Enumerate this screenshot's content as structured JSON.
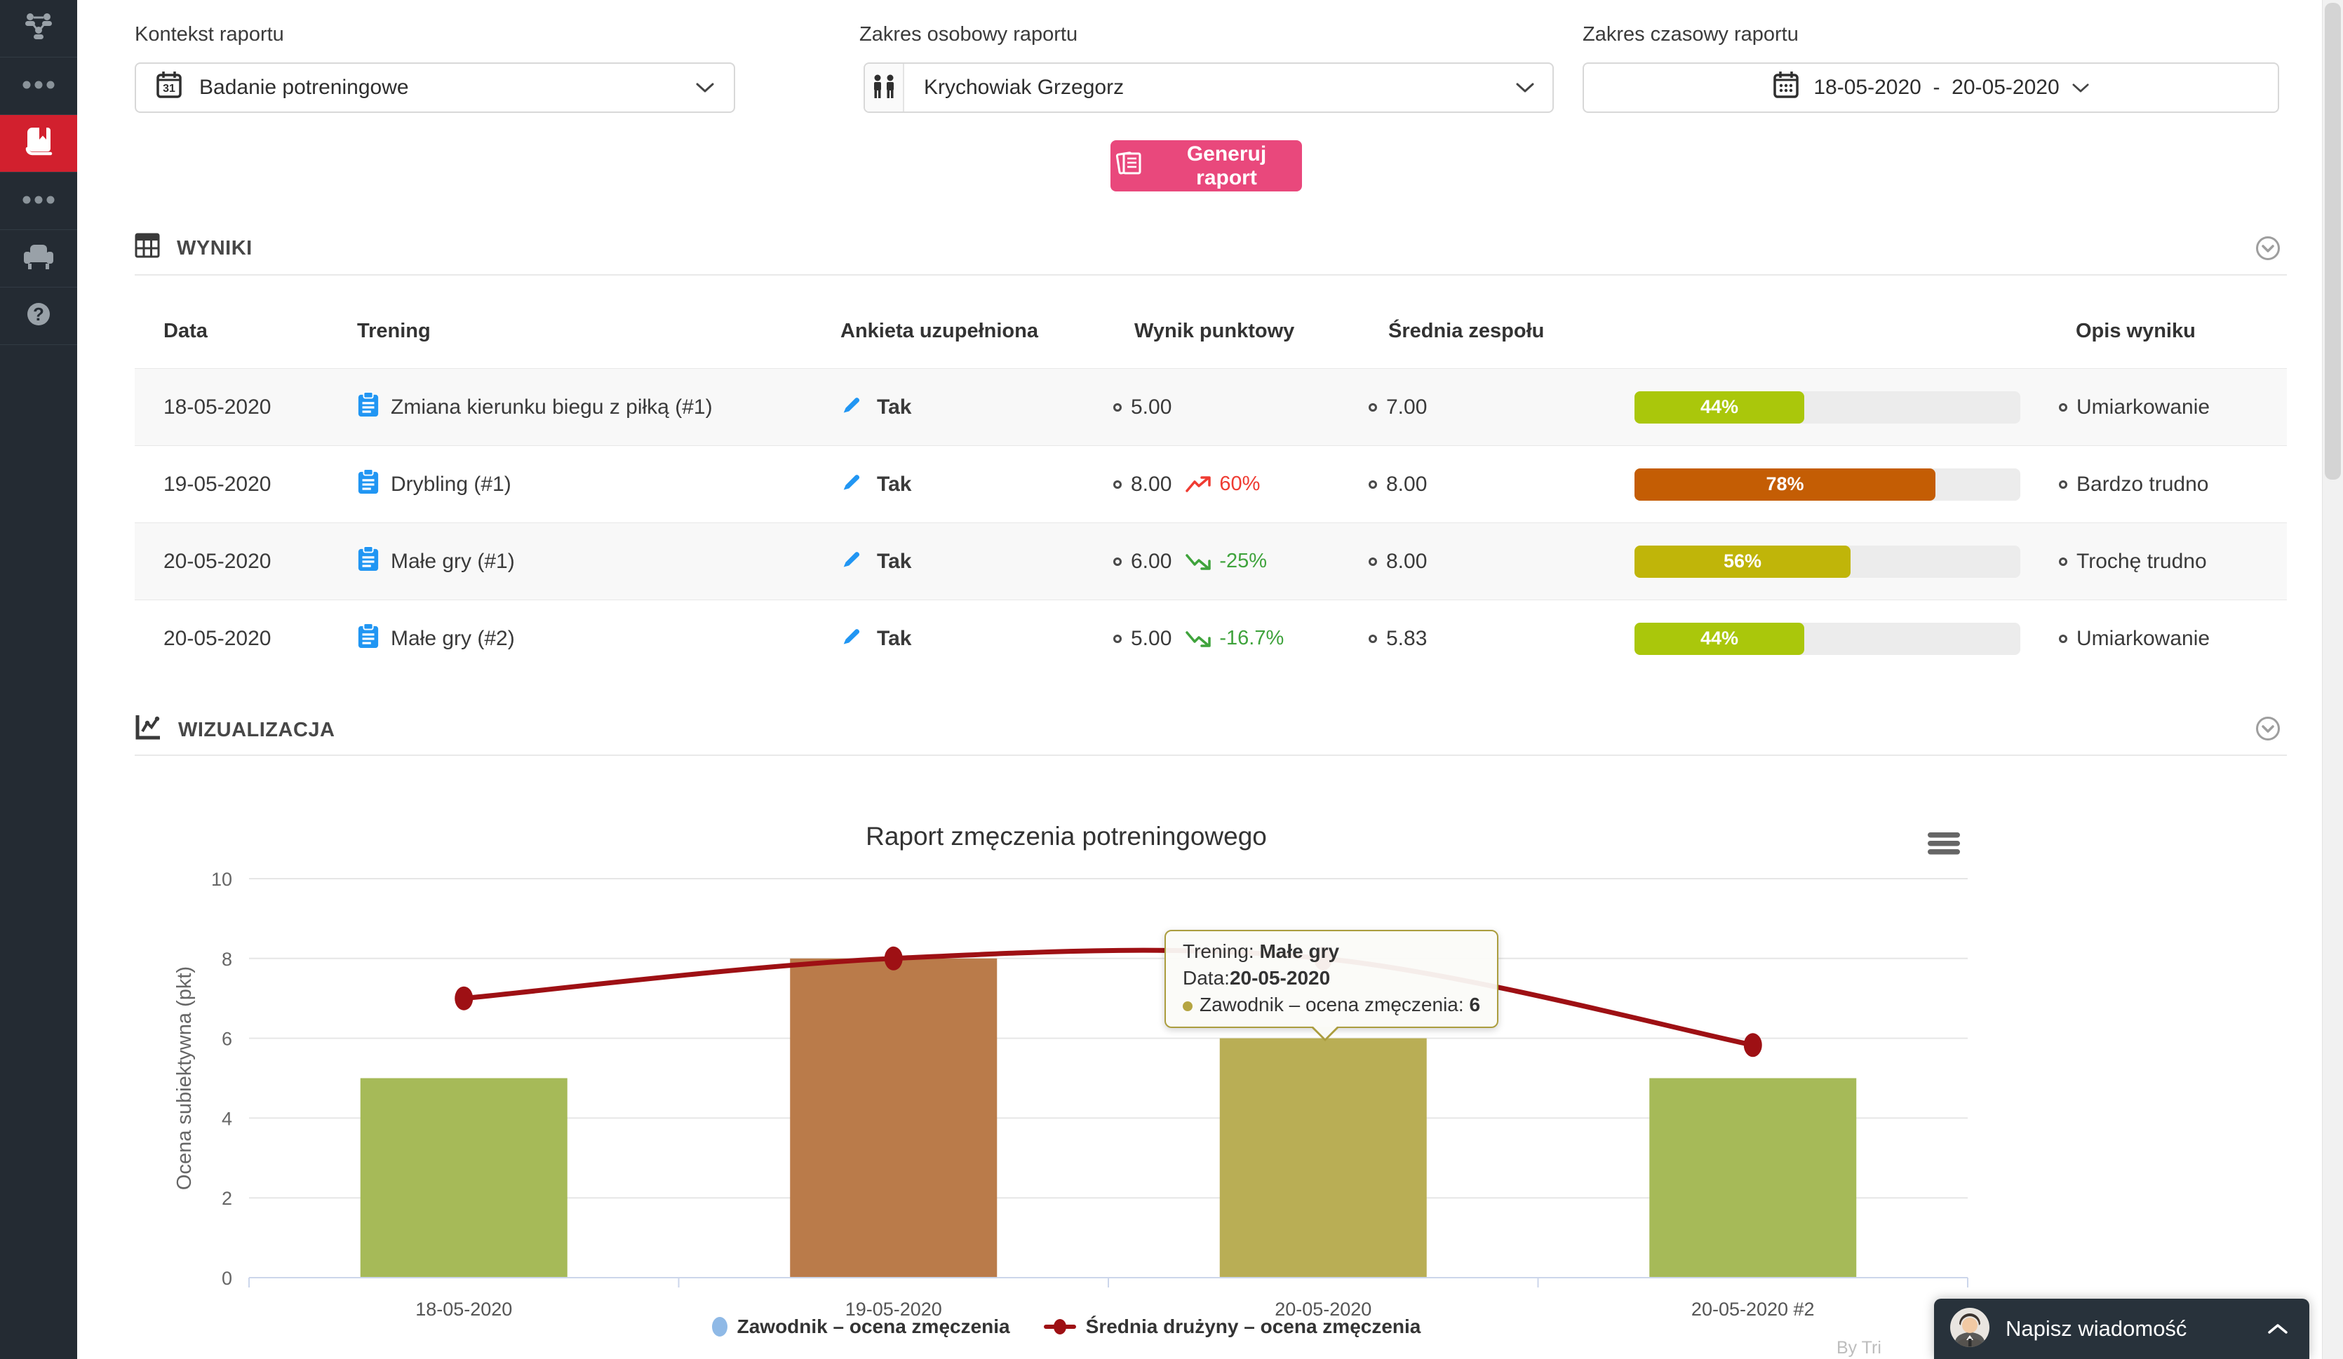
{
  "sidebar": {
    "items": [
      {
        "icon": "org-chart-icon",
        "active": false
      },
      {
        "icon": "ellipsis-icon",
        "active": false
      },
      {
        "icon": "book-icon",
        "active": true
      },
      {
        "icon": "ellipsis-icon",
        "active": false
      },
      {
        "icon": "armchair-icon",
        "active": false
      },
      {
        "icon": "help-icon",
        "active": false
      }
    ],
    "active_color": "#D2202E"
  },
  "filters": {
    "context": {
      "label": "Kontekst raportu",
      "value": "Badanie potreningowe"
    },
    "person": {
      "label": "Zakres osobowy raportu",
      "value": "Krychowiak Grzegorz"
    },
    "range": {
      "label": "Zakres czasowy raportu",
      "from": "18-05-2020",
      "separator": "-",
      "to": "20-05-2020"
    }
  },
  "generate_button": {
    "label": "Generuj raport",
    "color": "#E9487C"
  },
  "results": {
    "section_title": "WYNIKI",
    "columns": [
      "Data",
      "Trening",
      "Ankieta uzupełniona",
      "Wynik punktowy",
      "Średnia zespołu",
      "",
      "Opis wyniku"
    ],
    "rows": [
      {
        "date": "18-05-2020",
        "training": "Zmiana kierunku biegu z piłką (#1)",
        "survey": "Tak",
        "score": "5.00",
        "trend": null,
        "trend_dir": null,
        "team_avg": "7.00",
        "percent": "44%",
        "percent_value": 44,
        "bar_color": "#aac70b",
        "desc": "Umiarkowanie"
      },
      {
        "date": "19-05-2020",
        "training": "Drybling (#1)",
        "survey": "Tak",
        "score": "8.00",
        "trend": "60%",
        "trend_dir": "up",
        "team_avg": "8.00",
        "percent": "78%",
        "percent_value": 78,
        "bar_color": "#c45d04",
        "desc": "Bardzo trudno"
      },
      {
        "date": "20-05-2020",
        "training": "Małe gry (#1)",
        "survey": "Tak",
        "score": "6.00",
        "trend": "-25%",
        "trend_dir": "down",
        "team_avg": "8.00",
        "percent": "56%",
        "percent_value": 56,
        "bar_color": "#c0b509",
        "desc": "Trochę trudno"
      },
      {
        "date": "20-05-2020",
        "training": "Małe gry (#2)",
        "survey": "Tak",
        "score": "5.00",
        "trend": "-16.7%",
        "trend_dir": "down",
        "team_avg": "5.83",
        "percent": "44%",
        "percent_value": 44,
        "bar_color": "#aac70b",
        "desc": "Umiarkowanie"
      }
    ],
    "trend_up_color": "#ef3b32",
    "trend_down_color": "#3fa33c"
  },
  "visualization": {
    "section_title": "WIZUALIZACJA"
  },
  "chart_data": {
    "type": "bar+line",
    "title": "Raport zmęczenia potreningowego",
    "categories": [
      "18-05-2020",
      "19-05-2020",
      "20-05-2020",
      "20-05-2020 #2"
    ],
    "series": [
      {
        "name": "Zawodnik – ocena zmęczenia",
        "type": "bar",
        "values": [
          5,
          8,
          6,
          5
        ],
        "colors": [
          "#a6ba58",
          "#ba7b4a",
          "#b9ae55",
          "#a6ba58"
        ],
        "legend_color": "#8fb9e6"
      },
      {
        "name": "Średnia drużyny – ocena zmęczenia",
        "type": "line",
        "values": [
          7,
          8,
          8,
          5.83
        ],
        "color": "#9e1014"
      }
    ],
    "ylabel": "Ocena subiektywna (pkt)",
    "ylim": [
      0,
      10
    ],
    "yticks": [
      0,
      2,
      4,
      6,
      8,
      10
    ],
    "grid": true,
    "legend_position": "bottom"
  },
  "tooltip": {
    "training_label": "Trening: ",
    "training": "Małe gry",
    "date_label": "Data:",
    "date": "20-05-2020",
    "series_label": "Zawodnik – ocena zmęczenia: ",
    "value": "6",
    "dot_color": "#b5a542"
  },
  "chat": {
    "label": "Napisz wiadomość"
  },
  "watermark": "By Tri"
}
